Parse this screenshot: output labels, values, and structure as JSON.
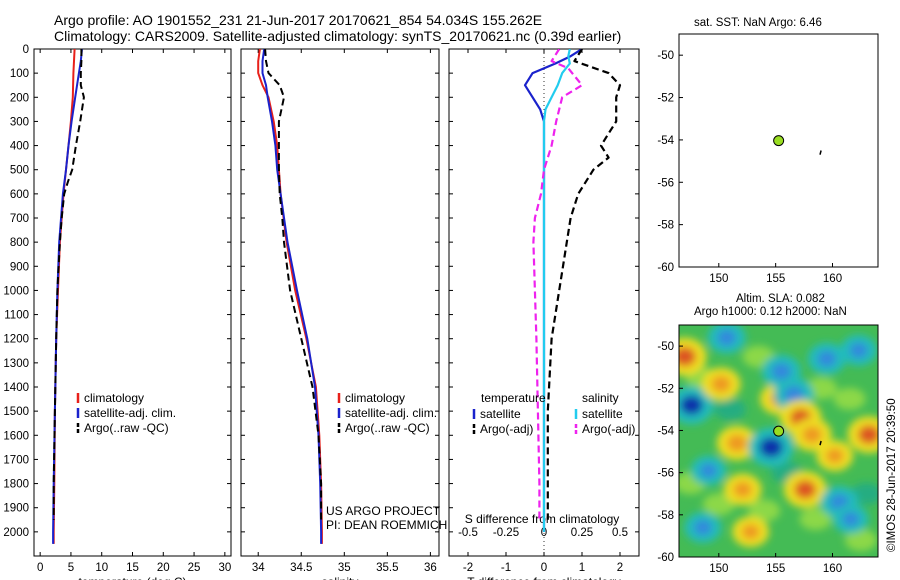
{
  "header": {
    "line1": "Argo profile: AO 1901552_231 21-Jun-2017 20170621_854 54.034S 155.262E",
    "line2": "Climatology: CARS2009. Satellite-adjusted climatology: synTS_20170621.nc (0.39d earlier)"
  },
  "sst_title": "sat. SST: NaN Argo: 6.46",
  "sla_title1": "Altim. SLA: 0.082",
  "sla_title2": "Argo h1000: 0.12 h2000: NaN",
  "project_line1": "US ARGO PROJECT",
  "project_line2": "PI: DEAN ROEMMICH",
  "watermark": "©IMOS 28-Jun-2017 20:39:50",
  "colors": {
    "climatology": "#e8201a",
    "satellite": "#1a22cc",
    "argo": "#000000",
    "sat_salinity": "#22ccee",
    "argo_salinity": "#ee22ee",
    "marker": "#99dd22"
  },
  "chart_data": [
    {
      "type": "line",
      "xlabel": "temperature (deg C)",
      "ylabel": "",
      "xlim": [
        -1,
        31
      ],
      "ylim": [
        2100,
        0
      ],
      "xticks": [
        0,
        5,
        10,
        15,
        20,
        25,
        30
      ],
      "yticks": [
        0,
        100,
        200,
        300,
        400,
        500,
        600,
        700,
        800,
        900,
        1000,
        1100,
        1200,
        1300,
        1400,
        1500,
        1600,
        1700,
        1800,
        1900,
        2000
      ],
      "legend": [
        "climatology",
        "satellite-adj. clim.",
        "Argo(..raw -QC)"
      ],
      "legend_position": "lower-middle",
      "series": [
        {
          "name": "climatology",
          "y": [
            0,
            50,
            100,
            200,
            300,
            400,
            500,
            600,
            800,
            1000,
            1200,
            1500,
            1800,
            2000,
            2050
          ],
          "x": [
            5.6,
            5.5,
            5.4,
            5.3,
            5.0,
            4.6,
            4.2,
            3.8,
            3.2,
            2.9,
            2.6,
            2.4,
            2.3,
            2.2,
            2.2
          ]
        },
        {
          "name": "satellite-adj. clim.",
          "y": [
            0,
            50,
            100,
            200,
            300,
            400,
            500,
            600,
            800,
            1000,
            1200,
            1500,
            1800,
            2000,
            2050
          ],
          "x": [
            6.8,
            6.6,
            6.3,
            5.7,
            5.1,
            4.6,
            4.2,
            3.7,
            3.1,
            2.8,
            2.6,
            2.4,
            2.2,
            2.1,
            2.1
          ]
        },
        {
          "name": "Argo(..raw -QC)",
          "y": [
            0,
            50,
            100,
            150,
            200,
            300,
            400,
            500,
            550,
            600,
            700,
            800,
            900,
            1000,
            1200,
            1500,
            1800,
            1950
          ],
          "x": [
            6.7,
            6.7,
            6.6,
            6.6,
            7.1,
            6.5,
            5.8,
            5.2,
            4.5,
            3.9,
            3.5,
            3.2,
            3.0,
            2.8,
            2.6,
            2.4,
            2.2,
            2.2
          ]
        }
      ]
    },
    {
      "type": "line",
      "xlabel": "salinity",
      "ylabel": "",
      "xlim": [
        33.8,
        36.1
      ],
      "ylim": [
        2100,
        0
      ],
      "xticks": [
        34,
        34.5,
        35,
        35.5,
        36
      ],
      "legend": [
        "climatology",
        "satellite-adj. clim.",
        "Argo(..raw -QC)"
      ],
      "legend_position": "lower-right",
      "series": [
        {
          "name": "climatology",
          "y": [
            0,
            50,
            100,
            150,
            200,
            300,
            400,
            500,
            600,
            800,
            1000,
            1200,
            1400,
            1600,
            1800,
            2000,
            2050
          ],
          "x": [
            34.02,
            34.0,
            34.0,
            34.05,
            34.12,
            34.18,
            34.22,
            34.24,
            34.26,
            34.33,
            34.43,
            34.56,
            34.67,
            34.71,
            34.73,
            34.74,
            34.74
          ]
        },
        {
          "name": "satellite-adj. clim.",
          "y": [
            0,
            50,
            100,
            150,
            200,
            300,
            400,
            500,
            600,
            800,
            1000,
            1200,
            1400,
            1600,
            1800,
            2000,
            2050
          ],
          "x": [
            34.07,
            34.05,
            34.05,
            34.09,
            34.11,
            34.16,
            34.2,
            34.22,
            34.26,
            34.34,
            34.45,
            34.57,
            34.66,
            34.7,
            34.72,
            34.73,
            34.73
          ]
        },
        {
          "name": "Argo(..raw -QC)",
          "y": [
            0,
            50,
            100,
            150,
            200,
            300,
            400,
            500,
            600,
            700,
            800,
            1000,
            1200,
            1400,
            1600,
            1800,
            1950
          ],
          "x": [
            34.08,
            34.09,
            34.12,
            34.25,
            34.3,
            34.24,
            34.24,
            34.24,
            34.25,
            34.28,
            34.3,
            34.37,
            34.5,
            34.63,
            34.7,
            34.73,
            34.73
          ]
        }
      ]
    },
    {
      "type": "line",
      "xlabel": "T difference from climatology",
      "x2label": "S difference from climatology",
      "ylabel": "",
      "xlim": [
        -2.5,
        2.5
      ],
      "ylim": [
        2100,
        0
      ],
      "xticks": [
        -2,
        -1,
        0,
        1,
        2
      ],
      "x2lim": [
        -0.625,
        0.625
      ],
      "x2ticks": [
        -0.5,
        -0.25,
        0,
        0.25,
        0.5
      ],
      "legend_titles": [
        "temperature",
        "salinity"
      ],
      "legend": [
        "satellite",
        "Argo(-adj)",
        "satellite",
        "Argo(-adj)"
      ],
      "legend_position": "lower-middle",
      "series": [
        {
          "name": "satellite",
          "quantity": "temperature",
          "y": [
            0,
            30,
            60,
            100,
            150,
            200,
            250,
            300,
            400,
            500,
            600,
            800,
            1000,
            1200,
            1500,
            1800,
            2000
          ],
          "x": [
            1.0,
            0.7,
            0.3,
            -0.3,
            -0.5,
            -0.3,
            -0.1,
            0.0,
            0.0,
            0.0,
            0.0,
            0.0,
            0.0,
            0.0,
            0.0,
            0.0,
            0.0
          ]
        },
        {
          "name": "Argo(-adj)",
          "quantity": "temperature",
          "y": [
            0,
            50,
            100,
            150,
            200,
            300,
            400,
            450,
            500,
            550,
            600,
            700,
            800,
            900,
            1000,
            1200,
            1500,
            1800,
            1950
          ],
          "x": [
            1.0,
            0.8,
            1.7,
            2.0,
            1.9,
            1.9,
            1.5,
            1.7,
            1.3,
            1.1,
            0.9,
            0.7,
            0.6,
            0.5,
            0.4,
            0.2,
            0.1,
            0.1,
            0.1
          ]
        },
        {
          "name": "satellite",
          "quantity": "salinity",
          "y": [
            0,
            30,
            60,
            100,
            150,
            200,
            250,
            300,
            400,
            500,
            600,
            800,
            1000,
            1200,
            1500,
            1800,
            2000
          ],
          "x": [
            0.17,
            0.16,
            0.17,
            0.12,
            0.09,
            0.05,
            0.01,
            0.0,
            0.0,
            0.0,
            0.0,
            0.0,
            0.0,
            0.0,
            0.0,
            0.0,
            0.0
          ]
        },
        {
          "name": "Argo(-adj)",
          "quantity": "salinity",
          "y": [
            0,
            50,
            80,
            150,
            200,
            300,
            400,
            500,
            600,
            700,
            800,
            1000,
            1200,
            1500,
            1800,
            1950
          ],
          "x": [
            0.1,
            0.05,
            0.16,
            0.25,
            0.12,
            0.08,
            0.05,
            0.0,
            -0.02,
            -0.06,
            -0.07,
            -0.06,
            -0.05,
            -0.04,
            -0.03,
            -0.03
          ]
        }
      ]
    },
    {
      "type": "scatter",
      "title": "sat. SST: NaN Argo: 6.46",
      "xlim": [
        146.5,
        164
      ],
      "ylim": [
        -60,
        -49
      ],
      "xticks": [
        150,
        155,
        160
      ],
      "yticks": [
        -50,
        -52,
        -54,
        -56,
        -58,
        -60
      ],
      "points": [
        {
          "x": 155.262,
          "y": -54.034
        }
      ],
      "track": [
        [
          159.0,
          -54.5
        ],
        [
          158.9,
          -54.7
        ]
      ]
    },
    {
      "type": "heatmap",
      "title": "Altim. SLA: 0.082",
      "subtitle": "Argo h1000: 0.12 h2000: NaN",
      "xlim": [
        146.5,
        164
      ],
      "ylim": [
        -60,
        -49
      ],
      "xticks": [
        150,
        155,
        160
      ],
      "yticks": [
        -50,
        -52,
        -54,
        -56,
        -58,
        -60
      ],
      "points": [
        {
          "x": 155.262,
          "y": -54.034
        }
      ],
      "track": [
        [
          159.0,
          -54.5
        ],
        [
          158.9,
          -54.7
        ]
      ],
      "blobs": [
        {
          "lon": 147.0,
          "lat": -50.5,
          "val": 1.0
        },
        {
          "lon": 147.6,
          "lat": -52.8,
          "val": -1.0
        },
        {
          "lon": 150.2,
          "lat": -51.8,
          "val": 0.6
        },
        {
          "lon": 151.6,
          "lat": -54.6,
          "val": 0.7
        },
        {
          "lon": 152.1,
          "lat": -56.8,
          "val": 0.5
        },
        {
          "lon": 152.8,
          "lat": -58.8,
          "val": 0.4
        },
        {
          "lon": 154.6,
          "lat": -54.8,
          "val": -1.1
        },
        {
          "lon": 155.3,
          "lat": -52.5,
          "val": 0.5
        },
        {
          "lon": 155.5,
          "lat": -51.2,
          "val": -0.6
        },
        {
          "lon": 156.6,
          "lat": -52.3,
          "val": -0.7
        },
        {
          "lon": 157.2,
          "lat": -53.4,
          "val": 0.8
        },
        {
          "lon": 158.2,
          "lat": -54.2,
          "val": 0.6
        },
        {
          "lon": 157.6,
          "lat": -56.8,
          "val": 0.9
        },
        {
          "lon": 160.6,
          "lat": -57.4,
          "val": -0.5
        },
        {
          "lon": 160.2,
          "lat": -55.2,
          "val": 0.4
        },
        {
          "lon": 163.2,
          "lat": -54.2,
          "val": 0.9
        },
        {
          "lon": 162.3,
          "lat": -50.2,
          "val": -0.4
        },
        {
          "lon": 159.5,
          "lat": -50.6,
          "val": -0.5
        },
        {
          "lon": 148.6,
          "lat": -58.6,
          "val": -0.4
        },
        {
          "lon": 150.7,
          "lat": -49.6,
          "val": -0.5
        },
        {
          "lon": 161.6,
          "lat": -58.2,
          "val": -0.3
        },
        {
          "lon": 149.1,
          "lat": -55.9,
          "val": -0.3
        }
      ]
    }
  ]
}
